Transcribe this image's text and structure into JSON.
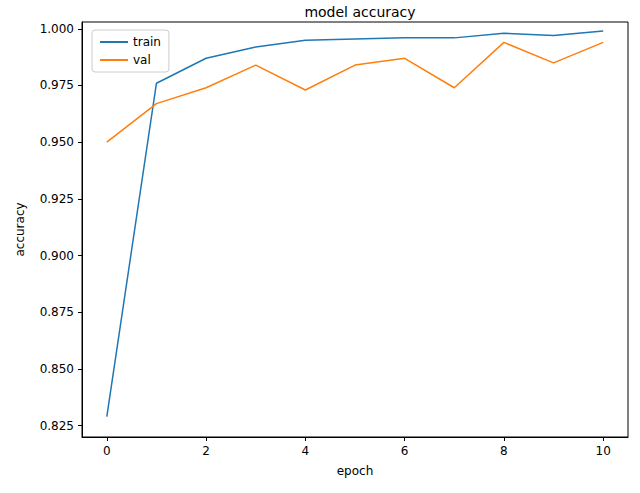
{
  "chart_data": {
    "type": "line",
    "title": "model accuracy",
    "x_label": "epoch",
    "y_label": "accuracy",
    "x": [
      0,
      1,
      2,
      3,
      4,
      5,
      6,
      7,
      8,
      9,
      10
    ],
    "series": [
      {
        "name": "train",
        "color": "#1f77b4",
        "values": [
          0.829,
          0.976,
          0.987,
          0.992,
          0.995,
          0.9955,
          0.996,
          0.996,
          0.998,
          0.997,
          0.999
        ]
      },
      {
        "name": "val",
        "color": "#ff7f0e",
        "values": [
          0.95,
          0.967,
          0.974,
          0.984,
          0.973,
          0.984,
          0.987,
          0.974,
          0.994,
          0.985,
          0.994
        ]
      }
    ],
    "xlim": [
      -0.5,
      10.5
    ],
    "xticks": [
      0,
      2,
      4,
      6,
      8,
      10
    ],
    "ylim": [
      0.82,
      1.003
    ],
    "yticks": [
      0.825,
      {
        "value": 0.85,
        "label": "0.850"
      },
      0.875,
      {
        "value": 0.9,
        "label": "0.900"
      },
      0.925,
      {
        "value": 0.95,
        "label": "0.950"
      },
      0.975,
      {
        "value": 1.0,
        "label": "1.000"
      }
    ],
    "grid": false,
    "legend": "upper left"
  }
}
